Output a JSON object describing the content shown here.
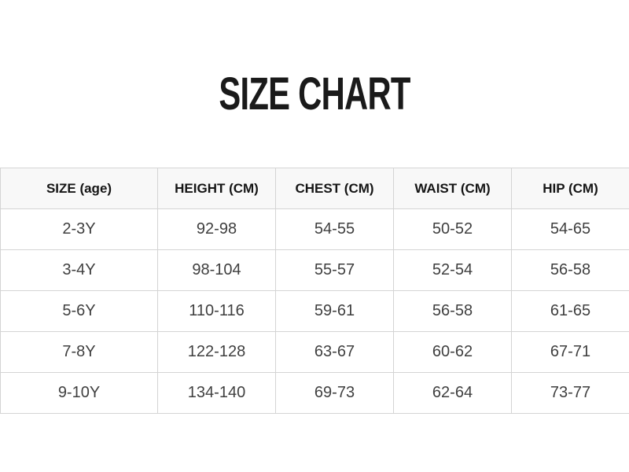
{
  "page": {
    "title": "SIZE CHART"
  },
  "table": {
    "headers": [
      "SIZE (age)",
      "HEIGHT (CM)",
      "CHEST (CM)",
      "WAIST (CM)",
      "HIP (CM)"
    ],
    "rows": [
      [
        "2-3Y",
        "92-98",
        "54-55",
        "50-52",
        "54-65"
      ],
      [
        "3-4Y",
        "98-104",
        "55-57",
        "52-54",
        "56-58"
      ],
      [
        "5-6Y",
        "110-116",
        "59-61",
        "56-58",
        "61-65"
      ],
      [
        "7-8Y",
        "122-128",
        "63-67",
        "60-62",
        "67-71"
      ],
      [
        "9-10Y",
        "134-140",
        "69-73",
        "62-64",
        "73-77"
      ]
    ]
  },
  "colors": {
    "page_bg": "#ffffff",
    "title_text": "#1a1a1a",
    "header_bg": "#f8f8f8",
    "header_text": "#151515",
    "cell_text": "#3f3f3f",
    "border": "#d4d4d4"
  }
}
